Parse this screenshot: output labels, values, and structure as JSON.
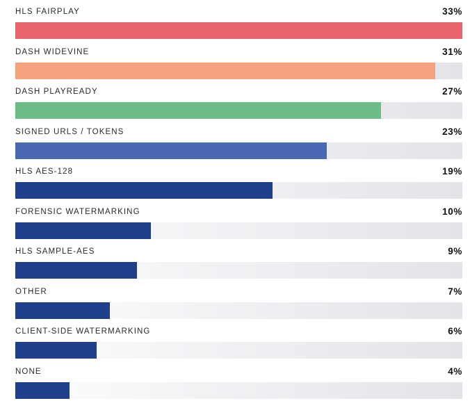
{
  "chart_data": {
    "type": "bar",
    "orientation": "horizontal",
    "categories": [
      "HLS FAIRPLAY",
      "DASH WIDEVINE",
      "DASH PLAYREADY",
      "SIGNED URLS / TOKENS",
      "HLS AES-128",
      "FORENSIC WATERMARKING",
      "HLS SAMPLE-AES",
      "OTHER",
      "CLIENT-SIDE WATERMARKING",
      "NONE"
    ],
    "values": [
      33,
      31,
      27,
      23,
      19,
      10,
      9,
      7,
      6,
      4
    ],
    "value_labels": [
      "33%",
      "31%",
      "27%",
      "23%",
      "19%",
      "10%",
      "9%",
      "7%",
      "6%",
      "4%"
    ],
    "colors": [
      "#e8636c",
      "#f5a37f",
      "#6dbb85",
      "#4a67b2",
      "#1f3f8a",
      "#1f3f8a",
      "#1f3f8a",
      "#1f3f8a",
      "#1f3f8a",
      "#1f3f8a"
    ],
    "track_color": "#e2e4e8",
    "xlim": [
      0,
      33
    ],
    "title": "",
    "xlabel": "",
    "ylabel": "",
    "grid": false,
    "legend": false
  }
}
